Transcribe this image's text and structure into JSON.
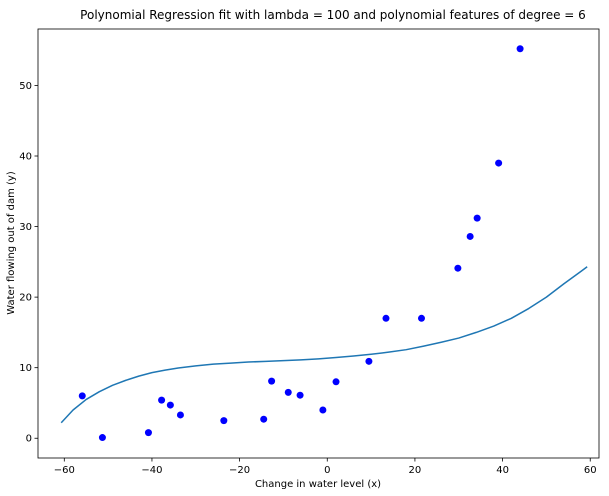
{
  "chart_data": {
    "type": "scatter",
    "title": "Polynomial Regression fit with lambda = 100 and polynomial features of degree = 6",
    "xlabel": "Change in water level (x)",
    "ylabel": "Water flowing out of dam (y)",
    "xlim": [
      -66,
      62
    ],
    "ylim": [
      -2.8,
      58
    ],
    "xticks": [
      -60,
      -40,
      -20,
      0,
      20,
      40,
      60
    ],
    "xtick_labels": [
      "−60",
      "−40",
      "−20",
      "0",
      "20",
      "40",
      "60"
    ],
    "yticks": [
      0,
      10,
      20,
      30,
      40,
      50
    ],
    "ytick_labels": [
      "0",
      "10",
      "20",
      "30",
      "40",
      "50"
    ],
    "grid": false,
    "series": [
      {
        "kind": "points",
        "color": "#0000ff",
        "x": [
          -55.9,
          -51.3,
          -40.8,
          -37.8,
          -35.8,
          -33.5,
          -23.6,
          -14.5,
          -12.7,
          -8.9,
          -6.2,
          -1.0,
          2.0,
          9.5,
          13.4,
          21.5,
          29.8,
          32.6,
          34.2,
          39.1,
          44.0
        ],
        "y": [
          6.0,
          0.1,
          0.8,
          5.4,
          4.7,
          3.3,
          2.5,
          2.7,
          8.1,
          6.5,
          6.1,
          4.0,
          8.0,
          10.9,
          17.0,
          17.0,
          24.1,
          28.6,
          31.2,
          39.0,
          55.2
        ]
      },
      {
        "kind": "line",
        "color": "#1f77b4",
        "x": [
          -60.7,
          -58,
          -55,
          -52,
          -49,
          -46,
          -43,
          -40,
          -37,
          -34,
          -30,
          -26,
          -22,
          -18,
          -14,
          -10,
          -6,
          -2,
          2,
          6,
          10,
          14,
          18,
          22,
          26,
          30,
          34,
          38,
          42,
          46,
          50,
          54,
          58,
          59.3
        ],
        "y": [
          2.2,
          4.0,
          5.5,
          6.6,
          7.5,
          8.2,
          8.8,
          9.3,
          9.65,
          9.95,
          10.25,
          10.5,
          10.65,
          10.8,
          10.9,
          11.0,
          11.1,
          11.25,
          11.45,
          11.65,
          11.9,
          12.2,
          12.55,
          13.05,
          13.6,
          14.2,
          15.0,
          15.9,
          17.0,
          18.4,
          20.0,
          21.9,
          23.7,
          24.3
        ]
      }
    ]
  }
}
